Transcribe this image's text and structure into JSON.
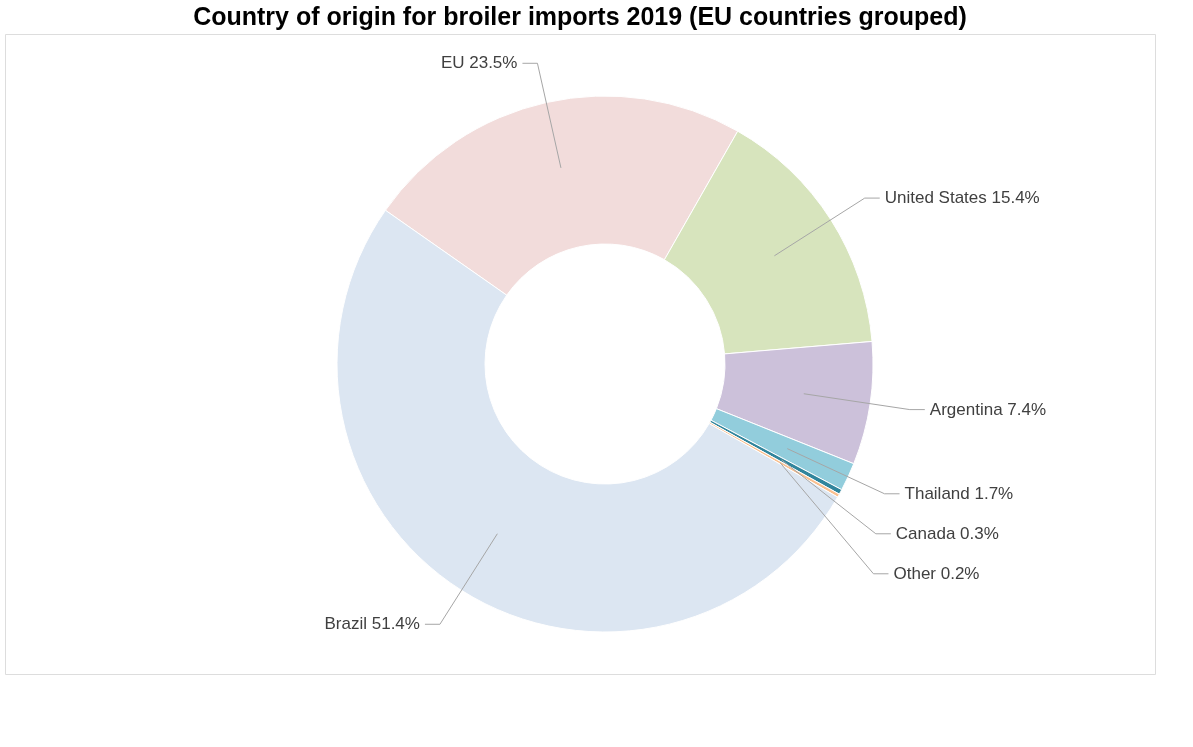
{
  "chart_data": {
    "type": "donut",
    "title": "Country of origin for broiler imports 2019 (EU countries grouped)",
    "categories": [
      "EU",
      "United States",
      "Argentina",
      "Thailand",
      "Canada",
      "Other",
      "Brazil"
    ],
    "values": [
      23.5,
      15.4,
      7.4,
      1.7,
      0.3,
      0.2,
      51.4
    ],
    "value_labels": [
      "23.5%",
      "15.4%",
      "7.4%",
      "1.7%",
      "0.3%",
      "0.2%",
      "51.4%"
    ],
    "colors": [
      "#f2dcdb",
      "#d7e4bd",
      "#ccc1da",
      "#92cddc",
      "#31859c",
      "#fac090",
      "#dce6f2"
    ],
    "legend": false
  }
}
